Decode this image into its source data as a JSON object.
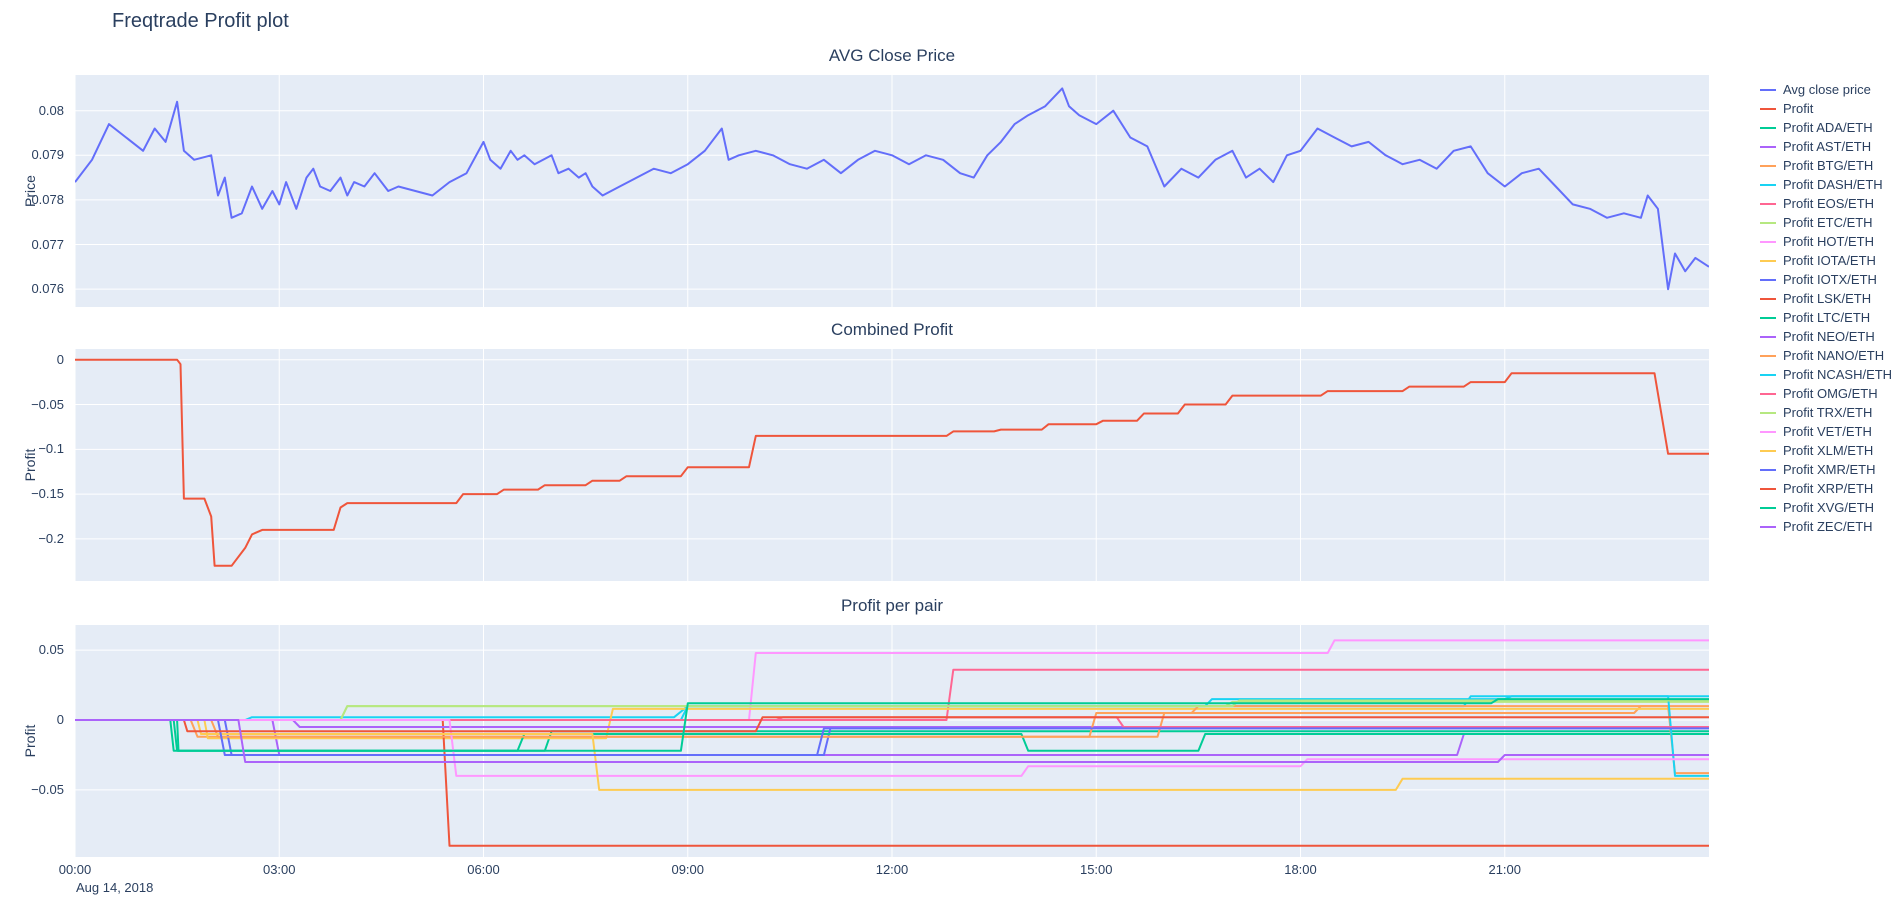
{
  "page": {
    "title": "Freqtrade Profit plot"
  },
  "colors": {
    "text": "#2a3f5f",
    "plot_background": "#e5ecf6",
    "grid": "#ffffff"
  },
  "xaxis": {
    "ticks": [
      "00:00",
      "03:00",
      "06:00",
      "09:00",
      "12:00",
      "15:00",
      "18:00",
      "21:00"
    ],
    "tick_hours": [
      0,
      3,
      6,
      9,
      12,
      15,
      18,
      21
    ],
    "date_label": "Aug 14, 2018"
  },
  "legend": {
    "items": [
      {
        "label": "Avg close price",
        "color": "#636efa"
      },
      {
        "label": "Profit",
        "color": "#ef553b"
      },
      {
        "label": "Profit ADA/ETH",
        "color": "#00cc96"
      },
      {
        "label": "Profit AST/ETH",
        "color": "#ab63fa"
      },
      {
        "label": "Profit BTG/ETH",
        "color": "#ffa15a"
      },
      {
        "label": "Profit DASH/ETH",
        "color": "#19d3f3"
      },
      {
        "label": "Profit EOS/ETH",
        "color": "#ff6692"
      },
      {
        "label": "Profit ETC/ETH",
        "color": "#b6e880"
      },
      {
        "label": "Profit HOT/ETH",
        "color": "#ff97ff"
      },
      {
        "label": "Profit IOTA/ETH",
        "color": "#fecb52"
      },
      {
        "label": "Profit IOTX/ETH",
        "color": "#636efa"
      },
      {
        "label": "Profit LSK/ETH",
        "color": "#ef553b"
      },
      {
        "label": "Profit LTC/ETH",
        "color": "#00cc96"
      },
      {
        "label": "Profit NEO/ETH",
        "color": "#ab63fa"
      },
      {
        "label": "Profit NANO/ETH",
        "color": "#ffa15a"
      },
      {
        "label": "Profit NCASH/ETH",
        "color": "#19d3f3"
      },
      {
        "label": "Profit OMG/ETH",
        "color": "#ff6692"
      },
      {
        "label": "Profit TRX/ETH",
        "color": "#b6e880"
      },
      {
        "label": "Profit VET/ETH",
        "color": "#ff97ff"
      },
      {
        "label": "Profit XLM/ETH",
        "color": "#fecb52"
      },
      {
        "label": "Profit XMR/ETH",
        "color": "#636efa"
      },
      {
        "label": "Profit XRP/ETH",
        "color": "#ef553b"
      },
      {
        "label": "Profit XVG/ETH",
        "color": "#00cc96"
      },
      {
        "label": "Profit ZEC/ETH",
        "color": "#ab63fa"
      }
    ]
  },
  "chart_data": [
    {
      "type": "line",
      "title": "AVG Close Price",
      "xlabel": "",
      "ylabel": "Price",
      "xlim": [
        0,
        24
      ],
      "ylim": [
        0.0756,
        0.0808
      ],
      "yticks": [
        0.076,
        0.077,
        0.078,
        0.079,
        0.08
      ],
      "ytick_labels": [
        "0.076",
        "0.077",
        "0.078",
        "0.079",
        "0.08"
      ],
      "grid": true,
      "legend_position": "right",
      "series": [
        {
          "name": "Avg close price",
          "color": "#636efa",
          "x": [
            0,
            0.25,
            0.5,
            0.75,
            1.0,
            1.17,
            1.33,
            1.5,
            1.6,
            1.75,
            2.0,
            2.1,
            2.2,
            2.3,
            2.45,
            2.6,
            2.75,
            2.9,
            3.0,
            3.1,
            3.25,
            3.4,
            3.5,
            3.6,
            3.75,
            3.9,
            4.0,
            4.1,
            4.25,
            4.4,
            4.5,
            4.6,
            4.75,
            5.0,
            5.25,
            5.5,
            5.75,
            6.0,
            6.1,
            6.25,
            6.4,
            6.5,
            6.6,
            6.75,
            7.0,
            7.1,
            7.25,
            7.4,
            7.5,
            7.6,
            7.75,
            8.0,
            8.25,
            8.5,
            8.75,
            9.0,
            9.25,
            9.5,
            9.6,
            9.75,
            10.0,
            10.25,
            10.5,
            10.75,
            11.0,
            11.25,
            11.5,
            11.75,
            12.0,
            12.25,
            12.5,
            12.75,
            13.0,
            13.2,
            13.4,
            13.6,
            13.8,
            14.0,
            14.25,
            14.5,
            14.6,
            14.75,
            15.0,
            15.25,
            15.5,
            15.75,
            16.0,
            16.25,
            16.5,
            16.75,
            17.0,
            17.2,
            17.4,
            17.6,
            17.8,
            18.0,
            18.25,
            18.5,
            18.75,
            19.0,
            19.25,
            19.5,
            19.75,
            20.0,
            20.25,
            20.5,
            20.75,
            21.0,
            21.25,
            21.5,
            21.75,
            22.0,
            22.25,
            22.5,
            22.75,
            23.0,
            23.1,
            23.25,
            23.4,
            23.5,
            23.65,
            23.8,
            24.0
          ],
          "y": [
            0.0784,
            0.0789,
            0.0797,
            0.0794,
            0.0791,
            0.0796,
            0.0793,
            0.0802,
            0.0791,
            0.0789,
            0.079,
            0.0781,
            0.0785,
            0.0776,
            0.0777,
            0.0783,
            0.0778,
            0.0782,
            0.0779,
            0.0784,
            0.0778,
            0.0785,
            0.0787,
            0.0783,
            0.0782,
            0.0785,
            0.0781,
            0.0784,
            0.0783,
            0.0786,
            0.0784,
            0.0782,
            0.0783,
            0.0782,
            0.0781,
            0.0784,
            0.0786,
            0.0793,
            0.0789,
            0.0787,
            0.0791,
            0.0789,
            0.079,
            0.0788,
            0.079,
            0.0786,
            0.0787,
            0.0785,
            0.0786,
            0.0783,
            0.0781,
            0.0783,
            0.0785,
            0.0787,
            0.0786,
            0.0788,
            0.0791,
            0.0796,
            0.0789,
            0.079,
            0.0791,
            0.079,
            0.0788,
            0.0787,
            0.0789,
            0.0786,
            0.0789,
            0.0791,
            0.079,
            0.0788,
            0.079,
            0.0789,
            0.0786,
            0.0785,
            0.079,
            0.0793,
            0.0797,
            0.0799,
            0.0801,
            0.0805,
            0.0801,
            0.0799,
            0.0797,
            0.08,
            0.0794,
            0.0792,
            0.0783,
            0.0787,
            0.0785,
            0.0789,
            0.0791,
            0.0785,
            0.0787,
            0.0784,
            0.079,
            0.0791,
            0.0796,
            0.0794,
            0.0792,
            0.0793,
            0.079,
            0.0788,
            0.0789,
            0.0787,
            0.0791,
            0.0792,
            0.0786,
            0.0783,
            0.0786,
            0.0787,
            0.0783,
            0.0779,
            0.0778,
            0.0776,
            0.0777,
            0.0776,
            0.0781,
            0.0778,
            0.076,
            0.0768,
            0.0764,
            0.0767,
            0.0765
          ]
        }
      ]
    },
    {
      "type": "line",
      "title": "Combined Profit",
      "xlabel": "",
      "ylabel": "Profit",
      "xlim": [
        0,
        24
      ],
      "ylim": [
        -0.247,
        0.012
      ],
      "yticks": [
        0,
        -0.05,
        -0.1,
        -0.15,
        -0.2
      ],
      "ytick_labels": [
        "0",
        "−0.05",
        "−0.1",
        "−0.15",
        "−0.2"
      ],
      "grid": true,
      "legend_position": "right",
      "series": [
        {
          "name": "Profit",
          "color": "#ef553b",
          "x": [
            0,
            1.5,
            1.55,
            1.6,
            1.9,
            2.0,
            2.05,
            2.3,
            2.35,
            2.5,
            2.6,
            2.75,
            3.8,
            3.9,
            4.0,
            5.6,
            5.7,
            6.2,
            6.3,
            6.8,
            6.9,
            7.5,
            7.6,
            8.0,
            8.1,
            8.9,
            9.0,
            9.9,
            10.0,
            12.8,
            12.9,
            13.5,
            13.6,
            14.2,
            14.3,
            15.0,
            15.1,
            15.6,
            15.7,
            16.2,
            16.3,
            16.9,
            17.0,
            18.3,
            18.4,
            19.5,
            19.6,
            20.4,
            20.5,
            21.0,
            21.1,
            23.2,
            23.3,
            23.4,
            24.0
          ],
          "y": [
            0,
            0,
            -0.005,
            -0.155,
            -0.155,
            -0.175,
            -0.23,
            -0.23,
            -0.225,
            -0.21,
            -0.195,
            -0.19,
            -0.19,
            -0.165,
            -0.16,
            -0.16,
            -0.15,
            -0.15,
            -0.145,
            -0.145,
            -0.14,
            -0.14,
            -0.135,
            -0.135,
            -0.13,
            -0.13,
            -0.12,
            -0.12,
            -0.085,
            -0.085,
            -0.08,
            -0.08,
            -0.078,
            -0.078,
            -0.072,
            -0.072,
            -0.068,
            -0.068,
            -0.06,
            -0.06,
            -0.05,
            -0.05,
            -0.04,
            -0.04,
            -0.035,
            -0.035,
            -0.03,
            -0.03,
            -0.025,
            -0.025,
            -0.015,
            -0.015,
            -0.06,
            -0.105,
            -0.105
          ]
        }
      ]
    },
    {
      "type": "line",
      "title": "Profit per pair",
      "xlabel": "",
      "ylabel": "Profit",
      "xlim": [
        0,
        24
      ],
      "ylim": [
        -0.098,
        0.068
      ],
      "yticks": [
        0.05,
        0,
        -0.05
      ],
      "ytick_labels": [
        "0.05",
        "0",
        "−0.05"
      ],
      "grid": true,
      "legend_position": "right",
      "series": [
        {
          "name": "Profit ADA/ETH",
          "color": "#00cc96",
          "x": [
            0,
            1.5,
            1.52,
            6.9,
            7.0,
            24
          ],
          "y": [
            0,
            0,
            -0.022,
            -0.022,
            -0.008,
            -0.008
          ]
        },
        {
          "name": "Profit AST/ETH",
          "color": "#ab63fa",
          "x": [
            0,
            2.9,
            3.0,
            20.3,
            20.4,
            24
          ],
          "y": [
            0,
            0,
            -0.025,
            -0.025,
            -0.01,
            -0.01
          ]
        },
        {
          "name": "Profit BTG/ETH",
          "color": "#ffa15a",
          "x": [
            0,
            1.7,
            1.8,
            15.9,
            16.0,
            22.9,
            23.0,
            24
          ],
          "y": [
            0,
            0,
            -0.012,
            -0.012,
            0.005,
            0.005,
            0.01,
            0.01
          ]
        },
        {
          "name": "Profit DASH/ETH",
          "color": "#19d3f3",
          "x": [
            0,
            2.5,
            2.6,
            8.8,
            9.0,
            20.4,
            20.5,
            24
          ],
          "y": [
            0,
            0,
            0.002,
            0.002,
            0.01,
            0.01,
            0.017,
            0.017
          ]
        },
        {
          "name": "Profit EOS/ETH",
          "color": "#ff6692",
          "x": [
            0,
            12.8,
            12.9,
            24
          ],
          "y": [
            0,
            0,
            0.036,
            0.036
          ]
        },
        {
          "name": "Profit ETC/ETH",
          "color": "#b6e880",
          "x": [
            0,
            3.9,
            4.0,
            16.9,
            17.0,
            24
          ],
          "y": [
            0,
            0,
            0.01,
            0.01,
            0.013,
            0.013
          ]
        },
        {
          "name": "Profit HOT/ETH",
          "color": "#ff97ff",
          "x": [
            0,
            9.9,
            10.0,
            18.4,
            18.5,
            24
          ],
          "y": [
            0,
            0,
            0.048,
            0.048,
            0.057,
            0.057
          ]
        },
        {
          "name": "Profit IOTA/ETH",
          "color": "#fecb52",
          "x": [
            0,
            1.9,
            1.95,
            7.8,
            7.9,
            24
          ],
          "y": [
            0,
            0,
            -0.013,
            -0.013,
            0.008,
            0.008
          ]
        },
        {
          "name": "Profit IOTX/ETH",
          "color": "#636efa",
          "x": [
            0,
            2.2,
            2.3,
            11.0,
            11.1,
            24
          ],
          "y": [
            0,
            0,
            -0.025,
            -0.025,
            -0.005,
            -0.005
          ]
        },
        {
          "name": "Profit LSK/ETH",
          "color": "#ef553b",
          "x": [
            0,
            5.4,
            5.5,
            24
          ],
          "y": [
            0,
            0,
            -0.09,
            -0.09
          ]
        },
        {
          "name": "Profit LTC/ETH",
          "color": "#00cc96",
          "x": [
            0,
            1.4,
            1.45,
            6.5,
            6.6,
            13.9,
            14.0,
            16.5,
            16.6,
            24
          ],
          "y": [
            0,
            0,
            -0.022,
            -0.022,
            -0.01,
            -0.01,
            -0.022,
            -0.022,
            -0.01,
            -0.01
          ]
        },
        {
          "name": "Profit NEO/ETH",
          "color": "#ab63fa",
          "x": [
            0,
            3.2,
            3.3,
            24
          ],
          "y": [
            0,
            0,
            -0.005,
            -0.005
          ]
        },
        {
          "name": "Profit NANO/ETH",
          "color": "#ffa15a",
          "x": [
            0,
            2.0,
            2.1,
            14.9,
            15.0,
            16.4,
            16.5,
            23.4,
            23.5,
            24
          ],
          "y": [
            0,
            0,
            -0.012,
            -0.012,
            0.005,
            0.005,
            0.01,
            0.01,
            -0.038,
            -0.038
          ]
        },
        {
          "name": "Profit NCASH/ETH",
          "color": "#19d3f3",
          "x": [
            0,
            8.9,
            9.0,
            16.6,
            16.7,
            21.0,
            21.1,
            23.4,
            23.5,
            24
          ],
          "y": [
            0,
            0,
            0.01,
            0.01,
            0.015,
            0.015,
            0.017,
            0.017,
            -0.04,
            -0.04
          ]
        },
        {
          "name": "Profit OMG/ETH",
          "color": "#ff6692",
          "x": [
            0,
            10.3,
            10.4,
            15.3,
            15.4,
            24
          ],
          "y": [
            0,
            0,
            0.002,
            0.002,
            -0.005,
            -0.005
          ]
        },
        {
          "name": "Profit TRX/ETH",
          "color": "#b6e880",
          "x": [
            0,
            3.9,
            4.0,
            17.0,
            17.1,
            24
          ],
          "y": [
            0,
            0,
            0.01,
            0.01,
            0.014,
            0.014
          ]
        },
        {
          "name": "Profit VET/ETH",
          "color": "#ff97ff",
          "x": [
            0,
            5.5,
            5.6,
            13.9,
            14.0,
            18.0,
            18.1,
            24
          ],
          "y": [
            0,
            0,
            -0.04,
            -0.04,
            -0.033,
            -0.033,
            -0.028,
            -0.028
          ]
        },
        {
          "name": "Profit XLM/ETH",
          "color": "#fecb52",
          "x": [
            0,
            1.8,
            1.85,
            7.6,
            7.7,
            19.4,
            19.5,
            24
          ],
          "y": [
            0,
            0,
            -0.01,
            -0.01,
            -0.05,
            -0.05,
            -0.042,
            -0.042
          ]
        },
        {
          "name": "Profit XMR/ETH",
          "color": "#636efa",
          "x": [
            0,
            2.1,
            2.2,
            10.9,
            11.0,
            24
          ],
          "y": [
            0,
            0,
            -0.025,
            -0.025,
            -0.006,
            -0.006
          ]
        },
        {
          "name": "Profit XRP/ETH",
          "color": "#ef553b",
          "x": [
            0,
            1.6,
            1.65,
            10.0,
            10.1,
            24
          ],
          "y": [
            0,
            0,
            -0.008,
            -0.008,
            0.002,
            0.002
          ]
        },
        {
          "name": "Profit XVG/ETH",
          "color": "#00cc96",
          "x": [
            0,
            1.45,
            1.5,
            8.9,
            9.0,
            20.8,
            20.9,
            24
          ],
          "y": [
            0,
            0,
            -0.022,
            -0.022,
            0.012,
            0.012,
            0.015,
            0.015
          ]
        },
        {
          "name": "Profit ZEC/ETH",
          "color": "#ab63fa",
          "x": [
            0,
            2.4,
            2.5,
            20.9,
            21.0,
            24
          ],
          "y": [
            0,
            0,
            -0.03,
            -0.03,
            -0.025,
            -0.025
          ]
        }
      ]
    }
  ]
}
